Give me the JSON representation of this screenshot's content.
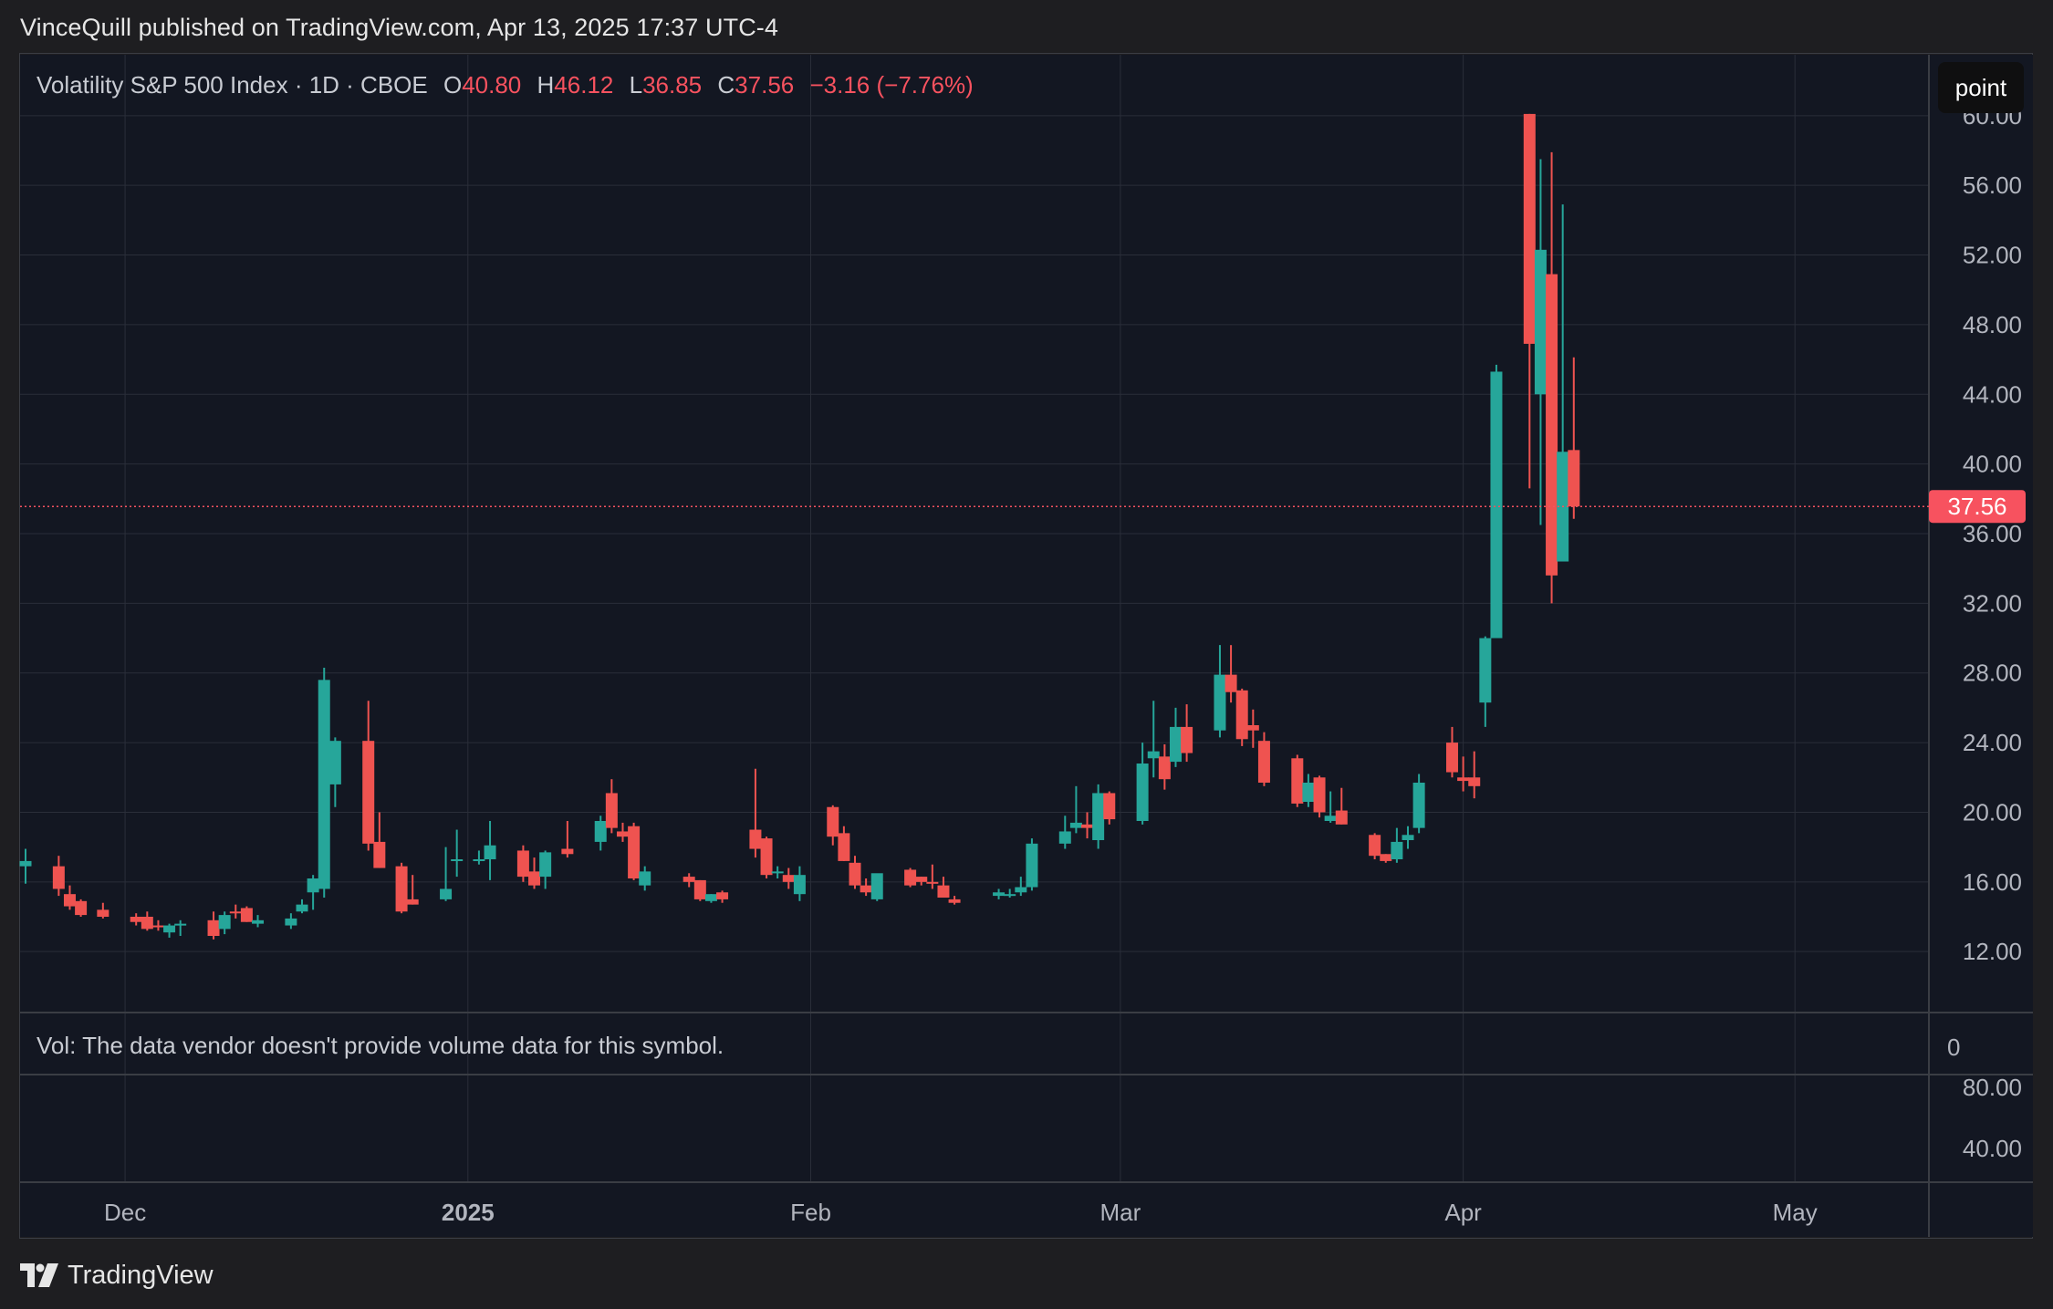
{
  "header": {
    "publisher_line": "VinceQuill published on TradingView.com, Apr 13, 2025 17:37 UTC-4"
  },
  "legend": {
    "symbol": "Volatility S&P 500 Index · 1D · CBOE",
    "o_label": "O",
    "o_value": "40.80",
    "h_label": "H",
    "h_value": "46.12",
    "l_label": "L",
    "l_value": "36.85",
    "c_label": "C",
    "c_value": "37.56",
    "change": "−3.16 (−7.76%)"
  },
  "toolbar": {
    "point_label": "point"
  },
  "volume_note": "Vol: The data vendor doesn't provide volume data for this symbol.",
  "footer": {
    "brand": "TradingView"
  },
  "colors": {
    "up": "#26a69a",
    "down": "#ef5350",
    "background": "#131722",
    "grid": "#2a2e39",
    "price_line": "#f7525f"
  },
  "chart_data": {
    "type": "candlestick",
    "symbol": "Volatility S&P 500 Index",
    "interval": "1D",
    "exchange": "CBOE",
    "last_price": 37.56,
    "last_price_label": "37.56",
    "ylim": [
      8.5,
      63.5
    ],
    "y_ticks": [
      12,
      16,
      20,
      24,
      28,
      32,
      36,
      40,
      44,
      48,
      52,
      56,
      60
    ],
    "y_tick_labels": [
      "12.00",
      "16.00",
      "20.00",
      "24.00",
      "28.00",
      "32.00",
      "36.00",
      "40.00",
      "44.00",
      "48.00",
      "52.00",
      "56.00",
      "60.00"
    ],
    "x_ticks": [
      {
        "date": "2024-12-01",
        "label": "Dec",
        "bold": false
      },
      {
        "date": "2025-01-01",
        "label": "2025",
        "bold": true
      },
      {
        "date": "2025-02-01",
        "label": "Feb",
        "bold": false
      },
      {
        "date": "2025-03-01",
        "label": "Mar",
        "bold": false
      },
      {
        "date": "2025-04-01",
        "label": "Apr",
        "bold": false
      },
      {
        "date": "2025-05-01",
        "label": "May",
        "bold": false
      }
    ],
    "xlim": [
      "2024-11-22",
      "2025-05-17"
    ],
    "volume_pane_label": "0",
    "lower_pane_ticks": [
      "80.00",
      "40.00"
    ],
    "candles": [
      {
        "date": "2024-11-22",
        "o": 16.9,
        "h": 17.9,
        "l": 15.9,
        "c": 17.2
      },
      {
        "date": "2024-11-25",
        "o": 16.9,
        "h": 17.5,
        "l": 15.2,
        "c": 15.6
      },
      {
        "date": "2024-11-26",
        "o": 15.3,
        "h": 15.8,
        "l": 14.4,
        "c": 14.6
      },
      {
        "date": "2024-11-27",
        "o": 14.9,
        "h": 15.0,
        "l": 14.0,
        "c": 14.1
      },
      {
        "date": "2024-11-29",
        "o": 14.4,
        "h": 14.8,
        "l": 13.9,
        "c": 14.0
      },
      {
        "date": "2024-12-02",
        "o": 14.0,
        "h": 14.2,
        "l": 13.5,
        "c": 13.7
      },
      {
        "date": "2024-12-03",
        "o": 14.0,
        "h": 14.3,
        "l": 13.2,
        "c": 13.3
      },
      {
        "date": "2024-12-04",
        "o": 13.5,
        "h": 13.8,
        "l": 13.2,
        "c": 13.4
      },
      {
        "date": "2024-12-05",
        "o": 13.1,
        "h": 13.6,
        "l": 12.8,
        "c": 13.5
      },
      {
        "date": "2024-12-06",
        "o": 13.5,
        "h": 13.8,
        "l": 12.9,
        "c": 13.6
      },
      {
        "date": "2024-12-09",
        "o": 13.8,
        "h": 14.3,
        "l": 12.7,
        "c": 12.9
      },
      {
        "date": "2024-12-10",
        "o": 13.3,
        "h": 14.3,
        "l": 13.0,
        "c": 14.1
      },
      {
        "date": "2024-12-11",
        "o": 14.3,
        "h": 14.7,
        "l": 13.9,
        "c": 14.2
      },
      {
        "date": "2024-12-12",
        "o": 14.5,
        "h": 14.6,
        "l": 13.7,
        "c": 13.7
      },
      {
        "date": "2024-12-13",
        "o": 13.6,
        "h": 14.1,
        "l": 13.4,
        "c": 13.8
      },
      {
        "date": "2024-12-16",
        "o": 13.5,
        "h": 14.2,
        "l": 13.3,
        "c": 13.9
      },
      {
        "date": "2024-12-17",
        "o": 14.3,
        "h": 15.0,
        "l": 14.2,
        "c": 14.7
      },
      {
        "date": "2024-12-18",
        "o": 15.4,
        "h": 16.4,
        "l": 14.4,
        "c": 16.2
      },
      {
        "date": "2024-12-19",
        "o": 15.6,
        "h": 28.3,
        "l": 15.1,
        "c": 27.6
      },
      {
        "date": "2024-12-20",
        "o": 21.6,
        "h": 24.3,
        "l": 20.3,
        "c": 24.1
      },
      {
        "date": "2024-12-23",
        "o": 24.1,
        "h": 26.4,
        "l": 17.8,
        "c": 18.2
      },
      {
        "date": "2024-12-24",
        "o": 18.3,
        "h": 20.0,
        "l": 16.8,
        "c": 16.8
      },
      {
        "date": "2024-12-26",
        "o": 16.9,
        "h": 17.1,
        "l": 14.2,
        "c": 14.3
      },
      {
        "date": "2024-12-27",
        "o": 15.0,
        "h": 16.4,
        "l": 14.7,
        "c": 14.7
      },
      {
        "date": "2024-12-30",
        "o": 15.0,
        "h": 18.0,
        "l": 14.9,
        "c": 15.6
      },
      {
        "date": "2024-12-31",
        "o": 17.2,
        "h": 19.0,
        "l": 16.3,
        "c": 17.3
      },
      {
        "date": "2025-01-02",
        "o": 17.2,
        "h": 17.8,
        "l": 17.0,
        "c": 17.3
      },
      {
        "date": "2025-01-03",
        "o": 17.3,
        "h": 19.5,
        "l": 16.1,
        "c": 18.1
      },
      {
        "date": "2025-01-06",
        "o": 17.8,
        "h": 18.1,
        "l": 16.0,
        "c": 16.3
      },
      {
        "date": "2025-01-07",
        "o": 16.6,
        "h": 17.4,
        "l": 15.6,
        "c": 15.8
      },
      {
        "date": "2025-01-08",
        "o": 16.3,
        "h": 17.8,
        "l": 15.6,
        "c": 17.7
      },
      {
        "date": "2025-01-10",
        "o": 17.9,
        "h": 19.5,
        "l": 17.4,
        "c": 17.6
      },
      {
        "date": "2025-01-13",
        "o": 18.3,
        "h": 19.8,
        "l": 17.8,
        "c": 19.5
      },
      {
        "date": "2025-01-14",
        "o": 21.1,
        "h": 21.9,
        "l": 18.8,
        "c": 19.1
      },
      {
        "date": "2025-01-15",
        "o": 18.9,
        "h": 19.4,
        "l": 18.3,
        "c": 18.6
      },
      {
        "date": "2025-01-16",
        "o": 19.2,
        "h": 19.4,
        "l": 16.1,
        "c": 16.2
      },
      {
        "date": "2025-01-17",
        "o": 15.8,
        "h": 16.9,
        "l": 15.5,
        "c": 16.6
      },
      {
        "date": "2025-01-21",
        "o": 16.3,
        "h": 16.5,
        "l": 15.7,
        "c": 16.0
      },
      {
        "date": "2025-01-22",
        "o": 16.1,
        "h": 16.1,
        "l": 14.9,
        "c": 15.0
      },
      {
        "date": "2025-01-23",
        "o": 14.9,
        "h": 15.3,
        "l": 14.8,
        "c": 15.3
      },
      {
        "date": "2025-01-24",
        "o": 15.4,
        "h": 15.5,
        "l": 14.8,
        "c": 15.0
      },
      {
        "date": "2025-01-27",
        "o": 19.0,
        "h": 22.5,
        "l": 17.4,
        "c": 17.9
      },
      {
        "date": "2025-01-28",
        "o": 18.5,
        "h": 18.6,
        "l": 16.2,
        "c": 16.4
      },
      {
        "date": "2025-01-29",
        "o": 16.6,
        "h": 16.9,
        "l": 16.2,
        "c": 16.6
      },
      {
        "date": "2025-01-30",
        "o": 16.4,
        "h": 16.8,
        "l": 15.6,
        "c": 16.0
      },
      {
        "date": "2025-01-31",
        "o": 15.3,
        "h": 16.9,
        "l": 14.9,
        "c": 16.4
      },
      {
        "date": "2025-02-03",
        "o": 20.3,
        "h": 20.4,
        "l": 18.1,
        "c": 18.6
      },
      {
        "date": "2025-02-04",
        "o": 18.8,
        "h": 19.2,
        "l": 17.2,
        "c": 17.2
      },
      {
        "date": "2025-02-05",
        "o": 17.1,
        "h": 17.5,
        "l": 15.6,
        "c": 15.8
      },
      {
        "date": "2025-02-06",
        "o": 15.8,
        "h": 16.2,
        "l": 15.2,
        "c": 15.4
      },
      {
        "date": "2025-02-07",
        "o": 15.0,
        "h": 16.4,
        "l": 14.9,
        "c": 16.5
      },
      {
        "date": "2025-02-10",
        "o": 16.7,
        "h": 16.8,
        "l": 15.7,
        "c": 15.8
      },
      {
        "date": "2025-02-11",
        "o": 16.3,
        "h": 16.3,
        "l": 15.8,
        "c": 16.0
      },
      {
        "date": "2025-02-12",
        "o": 16.0,
        "h": 17.0,
        "l": 15.6,
        "c": 15.9
      },
      {
        "date": "2025-02-13",
        "o": 15.8,
        "h": 16.3,
        "l": 15.1,
        "c": 15.1
      },
      {
        "date": "2025-02-14",
        "o": 15.0,
        "h": 15.2,
        "l": 14.7,
        "c": 14.8
      },
      {
        "date": "2025-02-18",
        "o": 15.2,
        "h": 15.6,
        "l": 15.0,
        "c": 15.4
      },
      {
        "date": "2025-02-19",
        "o": 15.3,
        "h": 15.6,
        "l": 15.1,
        "c": 15.3
      },
      {
        "date": "2025-02-20",
        "o": 15.4,
        "h": 16.3,
        "l": 15.2,
        "c": 15.7
      },
      {
        "date": "2025-02-21",
        "o": 15.7,
        "h": 18.5,
        "l": 15.5,
        "c": 18.2
      },
      {
        "date": "2025-02-24",
        "o": 18.2,
        "h": 19.8,
        "l": 17.9,
        "c": 18.9
      },
      {
        "date": "2025-02-25",
        "o": 19.1,
        "h": 21.5,
        "l": 18.8,
        "c": 19.4
      },
      {
        "date": "2025-02-26",
        "o": 19.3,
        "h": 20.0,
        "l": 18.5,
        "c": 19.1
      },
      {
        "date": "2025-02-27",
        "o": 18.4,
        "h": 21.6,
        "l": 17.9,
        "c": 21.1
      },
      {
        "date": "2025-02-28",
        "o": 21.1,
        "h": 21.2,
        "l": 19.3,
        "c": 19.6
      },
      {
        "date": "2025-03-03",
        "o": 19.5,
        "h": 24.0,
        "l": 19.3,
        "c": 22.8
      },
      {
        "date": "2025-03-04",
        "o": 23.1,
        "h": 26.4,
        "l": 22.0,
        "c": 23.5
      },
      {
        "date": "2025-03-05",
        "o": 23.2,
        "h": 23.9,
        "l": 21.3,
        "c": 21.9
      },
      {
        "date": "2025-03-06",
        "o": 22.9,
        "h": 26.0,
        "l": 22.6,
        "c": 24.9
      },
      {
        "date": "2025-03-07",
        "o": 24.9,
        "h": 26.2,
        "l": 22.9,
        "c": 23.4
      },
      {
        "date": "2025-03-10",
        "o": 24.7,
        "h": 29.6,
        "l": 24.3,
        "c": 27.9
      },
      {
        "date": "2025-03-11",
        "o": 27.9,
        "h": 29.6,
        "l": 26.3,
        "c": 26.9
      },
      {
        "date": "2025-03-12",
        "o": 27.0,
        "h": 27.1,
        "l": 23.8,
        "c": 24.2
      },
      {
        "date": "2025-03-13",
        "o": 25.0,
        "h": 25.9,
        "l": 23.7,
        "c": 24.7
      },
      {
        "date": "2025-03-14",
        "o": 24.1,
        "h": 24.6,
        "l": 21.5,
        "c": 21.7
      },
      {
        "date": "2025-03-17",
        "o": 23.1,
        "h": 23.3,
        "l": 20.3,
        "c": 20.5
      },
      {
        "date": "2025-03-18",
        "o": 20.6,
        "h": 22.2,
        "l": 20.3,
        "c": 21.7
      },
      {
        "date": "2025-03-19",
        "o": 22.0,
        "h": 22.1,
        "l": 19.7,
        "c": 20.0
      },
      {
        "date": "2025-03-20",
        "o": 19.5,
        "h": 21.2,
        "l": 19.4,
        "c": 19.8
      },
      {
        "date": "2025-03-21",
        "o": 20.1,
        "h": 21.4,
        "l": 19.3,
        "c": 19.3
      },
      {
        "date": "2025-03-24",
        "o": 18.7,
        "h": 18.8,
        "l": 17.3,
        "c": 17.5
      },
      {
        "date": "2025-03-25",
        "o": 17.6,
        "h": 17.6,
        "l": 17.1,
        "c": 17.2
      },
      {
        "date": "2025-03-26",
        "o": 17.3,
        "h": 19.1,
        "l": 17.1,
        "c": 18.3
      },
      {
        "date": "2025-03-27",
        "o": 18.4,
        "h": 19.2,
        "l": 17.9,
        "c": 18.7
      },
      {
        "date": "2025-03-28",
        "o": 19.1,
        "h": 22.2,
        "l": 18.8,
        "c": 21.7
      },
      {
        "date": "2025-03-31",
        "o": 24.0,
        "h": 24.9,
        "l": 22.0,
        "c": 22.3
      },
      {
        "date": "2025-04-01",
        "o": 22.0,
        "h": 23.2,
        "l": 21.2,
        "c": 21.8
      },
      {
        "date": "2025-04-02",
        "o": 22.0,
        "h": 23.5,
        "l": 20.8,
        "c": 21.5
      },
      {
        "date": "2025-04-03",
        "o": 26.3,
        "h": 30.1,
        "l": 24.9,
        "c": 30.0
      },
      {
        "date": "2025-04-04",
        "o": 30.0,
        "h": 45.7,
        "l": 30.0,
        "c": 45.3
      },
      {
        "date": "2025-04-07",
        "o": 60.1,
        "h": 60.1,
        "l": 38.6,
        "c": 46.9
      },
      {
        "date": "2025-04-08",
        "o": 44.0,
        "h": 57.5,
        "l": 36.5,
        "c": 52.3
      },
      {
        "date": "2025-04-09",
        "o": 50.9,
        "h": 57.9,
        "l": 32.0,
        "c": 33.6
      },
      {
        "date": "2025-04-10",
        "o": 34.4,
        "h": 54.9,
        "l": 34.4,
        "c": 40.7
      },
      {
        "date": "2025-04-11",
        "o": 40.8,
        "h": 46.12,
        "l": 36.85,
        "c": 37.56
      }
    ]
  }
}
